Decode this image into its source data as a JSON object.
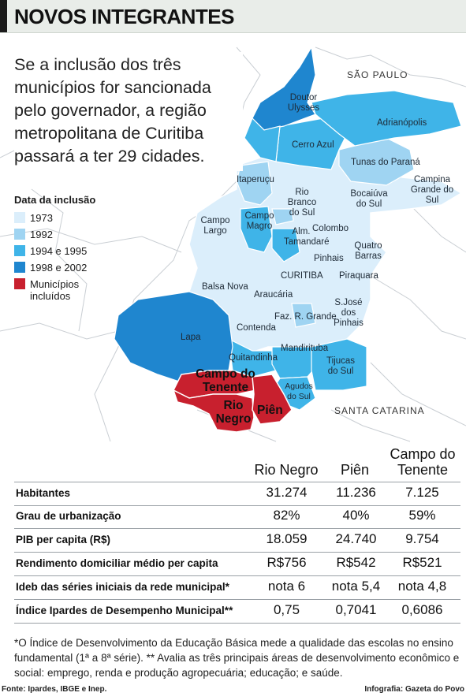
{
  "header": {
    "title": "NOVOS INTEGRANTES"
  },
  "lede": "Se a inclusão dos três municípios for sancionada pelo governador, a região metropolitana de Curitiba passará a ter 29 cidades.",
  "colors": {
    "y1973": "#dbeefb",
    "y1992": "#9fd4f2",
    "y1994": "#3fb4e8",
    "y1998": "#1f86cf",
    "included": "#c8202e"
  },
  "legend": {
    "title": "Data da inclusão",
    "items": [
      {
        "label": "1973",
        "color": "#dbeefb"
      },
      {
        "label": "1992",
        "color": "#9fd4f2"
      },
      {
        "label": "1994 e 1995",
        "color": "#3fb4e8"
      },
      {
        "label": "1998 e 2002",
        "color": "#1f86cf"
      },
      {
        "label": "Municípios incluídos",
        "color": "#c8202e"
      }
    ]
  },
  "map": {
    "states": {
      "north": "SÃO PAULO",
      "south": "SANTA CATARINA"
    },
    "municipalities": {
      "doutor_ulysses": "Doutor Ulysses",
      "adrianopolis": "Adrianópolis",
      "cerro_azul": "Cerro Azul",
      "tunas": "Tunas do Paraná",
      "campina": "Campina Grande do Sul",
      "itaperucu": "Itaperuçu",
      "rio_branco": "Rio Branco do Sul",
      "bocaiuva": "Bocaiúva do Sul",
      "campo_largo": "Campo Largo",
      "campo_magro": "Campo Magro",
      "colombo": "Colombo",
      "almirante": "Alm. Tamandaré",
      "quatro_barras": "Quatro Barras",
      "pinhais": "Pinhais",
      "curitiba": "CURITIBA",
      "piraquara": "Piraquara",
      "balsa_nova": "Balsa Nova",
      "araucaria": "Araucária",
      "sjp": "S.José dos Pinhais",
      "faz_rio_grande": "Faz. R. Grande",
      "lapa": "Lapa",
      "contenda": "Contenda",
      "mandirituba": "Mandirituba",
      "quitandinha": "Quitandinha",
      "tijucas": "Tijucas do Sul",
      "agudos": "Agudos do Sul",
      "campo_tenente": "Campo do Tenente",
      "rio_negro": "Rio Negro",
      "pien": "Piên"
    }
  },
  "table": {
    "columns": [
      "Rio Negro",
      "Piên",
      "Campo do Tenente"
    ],
    "rows": [
      {
        "label": "Habitantes",
        "values": [
          "31.274",
          "11.236",
          "7.125"
        ]
      },
      {
        "label": "Grau de urbanização",
        "values": [
          "82%",
          "40%",
          "59%"
        ]
      },
      {
        "label": "PIB per capita (R$)",
        "values": [
          "18.059",
          "24.740",
          "9.754"
        ]
      },
      {
        "label": "Rendimento domiciliar médio per capita",
        "values": [
          "R$756",
          "R$542",
          "R$521"
        ]
      },
      {
        "label": "Ideb das séries iniciais da rede municipal*",
        "values": [
          "nota 6",
          "nota 5,4",
          "nota 4,8"
        ]
      },
      {
        "label": "Índice Ipardes de Desempenho Municipal**",
        "values": [
          "0,75",
          "0,7041",
          "0,6086"
        ]
      }
    ]
  },
  "footnote": "*O Índice de Desenvolvimento da Educação Básica mede a qualidade das escolas no ensino fundamental (1ª a 8ª série). ** Avalia as três principais áreas de desenvolvimento econômico e social: emprego, renda e produção agropecuária; educação; e saúde.",
  "source": "Fonte: Ipardes, IBGE e Inep.",
  "credit": "Infografia: Gazeta do Povo"
}
